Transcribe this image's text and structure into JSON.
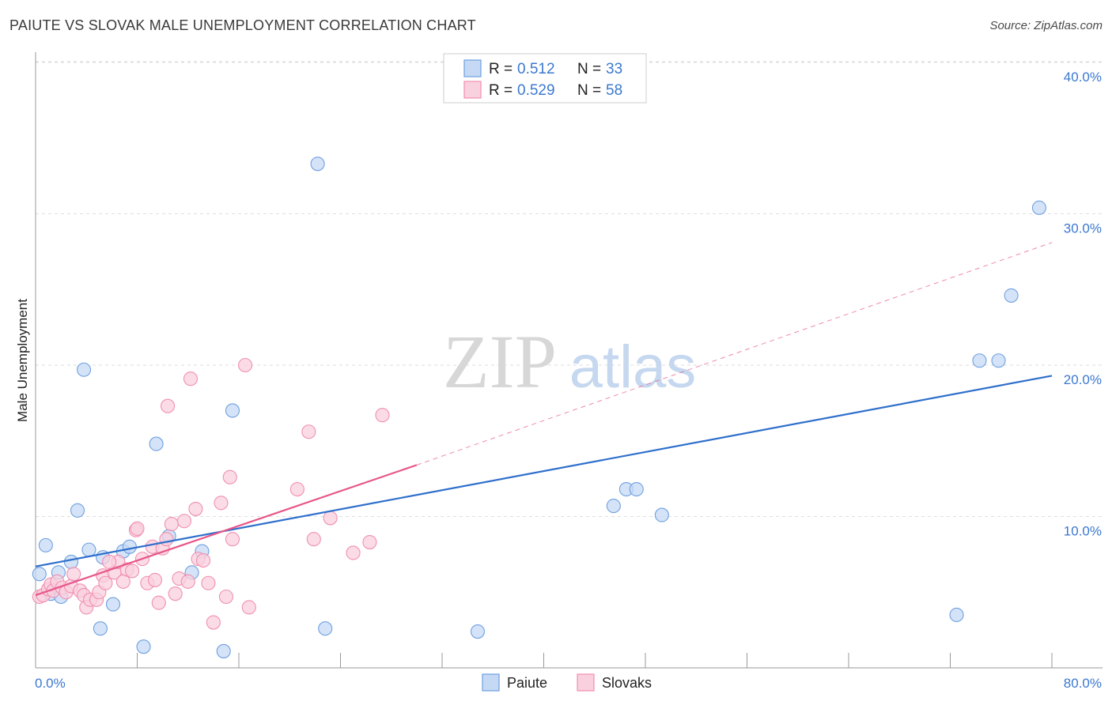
{
  "title": "PAIUTE VS SLOVAK MALE UNEMPLOYMENT CORRELATION CHART",
  "source": "Source: ZipAtlas.com",
  "watermark": {
    "zip": "ZIP",
    "atlas": "atlas"
  },
  "chart_data": {
    "type": "scatter",
    "ylabel": "Male Unemployment",
    "xlim": [
      0,
      80
    ],
    "ylim": [
      0,
      40
    ],
    "x_tick_labels": [
      "0.0%",
      "80.0%"
    ],
    "y_ticks": [
      10,
      20,
      30,
      40
    ],
    "y_tick_labels": [
      "10.0%",
      "20.0%",
      "30.0%",
      "40.0%"
    ],
    "legend": [
      {
        "r_label": "R =",
        "r_value": "0.512",
        "n_label": "N =",
        "n_value": "33"
      },
      {
        "r_label": "R =",
        "r_value": "0.529",
        "n_label": "N =",
        "n_value": "58"
      }
    ],
    "series": [
      {
        "name": "Paiute",
        "color": "#6fa0e0",
        "fill": "#c5d9f4",
        "line_color": "#2e6fcc",
        "trend": {
          "x0": 0,
          "y0": 6.7,
          "x1": 80,
          "y1": 19.3
        },
        "points": [
          [
            0.3,
            6.2
          ],
          [
            0.8,
            8.1
          ],
          [
            1.2,
            4.9
          ],
          [
            1.8,
            6.3
          ],
          [
            2.0,
            4.7
          ],
          [
            2.8,
            7.0
          ],
          [
            3.3,
            10.4
          ],
          [
            3.8,
            19.7
          ],
          [
            4.2,
            7.8
          ],
          [
            5.1,
            2.6
          ],
          [
            5.3,
            7.3
          ],
          [
            6.1,
            4.2
          ],
          [
            6.9,
            7.7
          ],
          [
            7.4,
            8.0
          ],
          [
            8.5,
            1.4
          ],
          [
            9.5,
            14.8
          ],
          [
            10.5,
            8.7
          ],
          [
            12.3,
            6.3
          ],
          [
            13.1,
            7.7
          ],
          [
            14.8,
            1.1
          ],
          [
            15.5,
            17.0
          ],
          [
            22.2,
            33.3
          ],
          [
            22.8,
            2.6
          ],
          [
            34.8,
            2.4
          ],
          [
            45.5,
            10.7
          ],
          [
            46.5,
            11.8
          ],
          [
            47.3,
            11.8
          ],
          [
            49.3,
            10.1
          ],
          [
            72.5,
            3.5
          ],
          [
            74.3,
            20.3
          ],
          [
            75.8,
            20.3
          ],
          [
            76.8,
            24.6
          ],
          [
            79.0,
            30.4
          ]
        ]
      },
      {
        "name": "Slovaks",
        "color": "#f08fb0",
        "fill": "#f9d0de",
        "line_color": "#e8578a",
        "trend": {
          "x0": 0,
          "y0": 4.8,
          "x1": 30,
          "y1": 13.4
        },
        "trend_dashed": {
          "x0": 30,
          "y0": 13.4,
          "x1": 80,
          "y1": 28.1
        },
        "points": [
          [
            0.3,
            4.7
          ],
          [
            0.6,
            4.8
          ],
          [
            1.0,
            5.2
          ],
          [
            1.2,
            5.5
          ],
          [
            1.4,
            5.1
          ],
          [
            1.7,
            5.7
          ],
          [
            2.1,
            5.3
          ],
          [
            2.4,
            5.0
          ],
          [
            2.8,
            5.4
          ],
          [
            3.0,
            6.2
          ],
          [
            3.5,
            5.1
          ],
          [
            3.8,
            4.8
          ],
          [
            4.0,
            4.0
          ],
          [
            4.3,
            4.5
          ],
          [
            4.8,
            4.5
          ],
          [
            5.0,
            5.0
          ],
          [
            5.3,
            6.1
          ],
          [
            5.5,
            5.6
          ],
          [
            6.2,
            6.3
          ],
          [
            6.5,
            7.0
          ],
          [
            6.9,
            5.7
          ],
          [
            7.2,
            6.5
          ],
          [
            7.6,
            6.4
          ],
          [
            7.9,
            9.1
          ],
          [
            8.0,
            9.2
          ],
          [
            8.4,
            7.2
          ],
          [
            8.8,
            5.6
          ],
          [
            9.2,
            8.0
          ],
          [
            9.4,
            5.8
          ],
          [
            9.7,
            4.3
          ],
          [
            10.0,
            7.9
          ],
          [
            10.3,
            8.5
          ],
          [
            10.7,
            9.5
          ],
          [
            11.0,
            4.9
          ],
          [
            11.3,
            5.9
          ],
          [
            11.7,
            9.7
          ],
          [
            12.0,
            5.7
          ],
          [
            12.6,
            10.5
          ],
          [
            12.8,
            7.2
          ],
          [
            13.2,
            7.1
          ],
          [
            13.6,
            5.6
          ],
          [
            14.0,
            3.0
          ],
          [
            14.6,
            10.9
          ],
          [
            15.0,
            4.7
          ],
          [
            15.3,
            12.6
          ],
          [
            15.5,
            8.5
          ],
          [
            16.5,
            20.0
          ],
          [
            16.8,
            4.0
          ],
          [
            20.6,
            11.8
          ],
          [
            21.5,
            15.6
          ],
          [
            21.9,
            8.5
          ],
          [
            23.2,
            9.9
          ],
          [
            25.0,
            7.6
          ],
          [
            26.3,
            8.3
          ],
          [
            27.3,
            16.7
          ],
          [
            12.2,
            19.1
          ],
          [
            10.4,
            17.3
          ],
          [
            5.8,
            7.0
          ]
        ]
      }
    ]
  }
}
